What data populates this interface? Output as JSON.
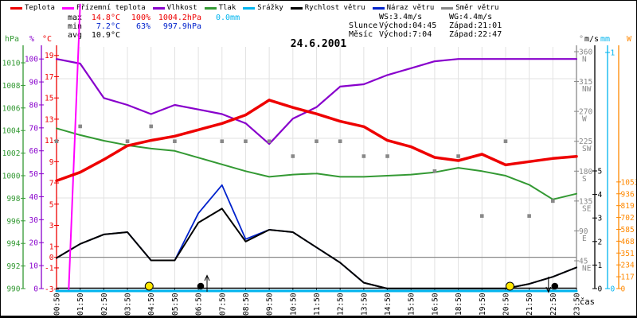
{
  "title": "24.6.2001",
  "legend": {
    "items": [
      {
        "key": "teplota",
        "label": "Teplota",
        "color": "#ee0000"
      },
      {
        "key": "prizemni-teplota",
        "label": "Přízemní teplota",
        "color": "#ff00ff"
      },
      {
        "key": "vlhkost",
        "label": "Vlhkost",
        "color": "#8800cc"
      },
      {
        "key": "tlak",
        "label": "Tlak",
        "color": "#339933"
      },
      {
        "key": "srazky",
        "label": "Srážky",
        "color": "#00b4ee"
      },
      {
        "key": "rychlost-vetru",
        "label": "Rychlost větru",
        "color": "#000000"
      },
      {
        "key": "naraz-vetru",
        "label": "Náraz větru",
        "color": "#0022cc"
      },
      {
        "key": "smer-vetru",
        "label": "Směr větru",
        "color": "#888888"
      }
    ]
  },
  "stats": {
    "rows": [
      {
        "label": "max",
        "cells": [
          {
            "text": "14.8°C",
            "color": "#ee0000"
          },
          {
            "text": "100%",
            "color": "#ee0000"
          },
          {
            "text": "1004.2hPa",
            "color": "#ee0000"
          },
          {
            "text": "0.0mm",
            "color": "#00b4ee"
          }
        ]
      },
      {
        "label": "min",
        "cells": [
          {
            "text": "7.2°C",
            "color": "#0022cc"
          },
          {
            "text": "63%",
            "color": "#0022cc"
          },
          {
            "text": "997.9hPa",
            "color": "#0022cc"
          },
          {
            "text": "",
            "color": "#000000"
          }
        ]
      },
      {
        "label": "avg",
        "cells": [
          {
            "text": "10.9°C",
            "color": "#000000"
          },
          {
            "text": "",
            "color": "#000000"
          },
          {
            "text": "",
            "color": "#000000"
          },
          {
            "text": "",
            "color": "#000000"
          }
        ]
      }
    ]
  },
  "sun_moon": {
    "rows": [
      {
        "label": "",
        "col1": "WS:3.4m/s",
        "col2": "WG:4.4m/s"
      },
      {
        "label": "Slunce",
        "col1": "Východ:04:45",
        "col2": "Západ:21:01"
      },
      {
        "label": "Měsíc",
        "col1": "Východ:7:04",
        "col2": "Západ:22:47"
      }
    ]
  },
  "chart_data": {
    "type": "line",
    "title": "24.6.2001",
    "xlabel": "čas",
    "x_labels": [
      "00:50",
      "01:50",
      "02:50",
      "03:50",
      "04:50",
      "05:50",
      "06:50",
      "07:50",
      "08:50",
      "09:50",
      "10:50",
      "11:50",
      "12:50",
      "13:50",
      "14:50",
      "15:50",
      "16:50",
      "18:50",
      "19:50",
      "20:50",
      "21:50",
      "22:50",
      "23:50"
    ],
    "note_missing_record": "17:50",
    "y_axes": {
      "temp": {
        "title": "°C",
        "unit": "°C",
        "color": "#ee0000",
        "ticks": [
          19,
          17,
          15,
          13,
          11,
          9,
          7,
          5,
          3,
          1,
          0,
          -1,
          -3
        ],
        "range": [
          -3,
          19.8
        ]
      },
      "hum": {
        "title": "%",
        "unit": "%",
        "color": "#8800cc",
        "ticks": [
          100,
          90,
          80,
          70,
          60,
          50,
          40,
          30,
          20,
          10,
          0
        ],
        "range": [
          0,
          105
        ]
      },
      "pres": {
        "title": "hPa",
        "unit": "hPa",
        "color": "#339933",
        "ticks": [
          1010,
          1008,
          1006,
          1004,
          1002,
          1000,
          998,
          996,
          994,
          992,
          990
        ],
        "range": [
          990,
          1011.4
        ]
      },
      "dir": {
        "title": "°",
        "unit": "°",
        "color": "#888888",
        "ticks": [
          360,
          315,
          270,
          225,
          180,
          135,
          90,
          45
        ],
        "tick_letters": [
          "N",
          "NW",
          "W",
          "SW",
          "S",
          "SE",
          "E",
          "NE"
        ],
        "range": [
          3,
          367
        ]
      },
      "wind": {
        "title": "m/s",
        "unit": "m/s",
        "color": "#000000",
        "ticks": [
          5,
          4,
          3,
          2,
          1,
          0
        ],
        "range": [
          0,
          10.3
        ]
      },
      "rain": {
        "title": "mm",
        "unit": "mm",
        "color": "#00b4ee",
        "ticks": [
          1,
          0
        ],
        "range": [
          0,
          1.02
        ]
      },
      "rad": {
        "title": "W",
        "unit": "W",
        "color": "#ff8800",
        "ticks": [
          1053,
          936,
          819,
          702,
          585,
          468,
          351,
          234,
          117,
          0
        ],
        "range": [
          0,
          2386
        ]
      }
    },
    "series": [
      {
        "key": "tlak",
        "name": "Tlak",
        "axis": "pres",
        "color": "#339933",
        "width": 2,
        "values": [
          1004.2,
          1003.6,
          1003.1,
          1002.7,
          1002.4,
          1002.2,
          1001.6,
          1001.0,
          1000.4,
          999.9,
          1000.1,
          1000.2,
          999.9,
          999.9,
          1000.0,
          1000.1,
          1000.3,
          1000.7,
          1000.4,
          1000.0,
          999.2,
          997.9,
          998.4
        ]
      },
      {
        "key": "vlhkost",
        "name": "Vlhkost",
        "axis": "hum",
        "color": "#8800cc",
        "width": 2.2,
        "values": [
          100,
          98,
          83,
          80,
          76,
          80,
          78,
          76,
          72,
          63,
          74,
          79,
          88,
          89,
          93,
          96,
          99,
          100,
          100,
          100,
          100,
          100,
          100
        ]
      },
      {
        "key": "srazky",
        "name": "Srážky",
        "axis": "rain",
        "color": "#00b4ee",
        "width": 3,
        "values": [
          0,
          0,
          0,
          0,
          0,
          0,
          0,
          0,
          0,
          0,
          0,
          0,
          0,
          0,
          0,
          0,
          0,
          0,
          0,
          0,
          0,
          0,
          0
        ]
      },
      {
        "key": "naraz-vetru",
        "name": "Náraz větru",
        "axis": "wind",
        "color": "#0022cc",
        "width": 1.8,
        "values": [
          1.3,
          1.9,
          2.3,
          2.4,
          1.2,
          1.2,
          3.2,
          4.4,
          2.1,
          2.5,
          2.4,
          1.75,
          1.1,
          0.25,
          0,
          0,
          0,
          0,
          0,
          0,
          0.2,
          0.5,
          0.9
        ]
      },
      {
        "key": "rychlost-vetru",
        "name": "Rychlost větru",
        "axis": "wind",
        "color": "#000000",
        "width": 2,
        "values": [
          1.3,
          1.9,
          2.3,
          2.4,
          1.2,
          1.2,
          2.8,
          3.4,
          2.0,
          2.5,
          2.4,
          1.75,
          1.1,
          0.25,
          0,
          0,
          0,
          0,
          0,
          0,
          0.2,
          0.5,
          0.9
        ]
      },
      {
        "key": "prizemni-teplota",
        "name": "Přízemní teplota",
        "axis": "temp",
        "color": "#ff00ff",
        "width": 2,
        "clip_bottom": true,
        "values": [
          -31.5,
          23.8,
          null,
          null,
          null,
          null,
          null,
          null,
          null,
          null,
          null,
          null,
          null,
          null,
          null,
          null,
          null,
          null,
          null,
          null,
          null,
          null,
          null
        ]
      },
      {
        "key": "teplota",
        "name": "Teplota",
        "axis": "temp",
        "color": "#ee0000",
        "width": 3.5,
        "values": [
          7.2,
          8.0,
          9.2,
          10.5,
          11.0,
          11.4,
          12.0,
          12.6,
          13.4,
          14.8,
          14.1,
          13.5,
          12.8,
          12.3,
          11.0,
          10.4,
          9.4,
          9.1,
          9.7,
          8.7,
          9.0,
          9.3,
          9.5
        ]
      },
      {
        "key": "smer-vetru",
        "name": "Směr větru",
        "axis": "dir",
        "color": "#888888",
        "style": "squares",
        "values": [
          225,
          247.5,
          null,
          225,
          247.5,
          225,
          null,
          225,
          225,
          225,
          202.5,
          225,
          225,
          202.5,
          202.5,
          null,
          180,
          202.5,
          112.5,
          225,
          112.5,
          135,
          null
        ]
      }
    ],
    "markers": [
      {
        "name": "slunce-vychod",
        "symbol": "sun",
        "time": "04:45"
      },
      {
        "name": "mesic-vychod",
        "symbol": "moon",
        "time": "7:04",
        "arrow": "up"
      },
      {
        "name": "slunce-zapad",
        "symbol": "sun",
        "time": "21:01"
      },
      {
        "name": "mesic-zapad",
        "symbol": "moon",
        "time": "22:47",
        "arrow": "down"
      }
    ]
  }
}
